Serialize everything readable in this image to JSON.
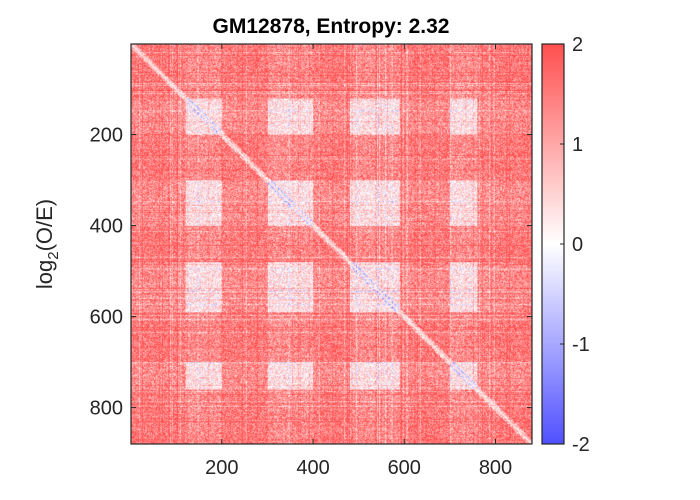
{
  "chart_data": {
    "type": "heatmap",
    "title": "GM12878, Entropy: 2.32",
    "ylabel": "log2(O/E)",
    "ylabel_base": "log",
    "ylabel_sub": "2",
    "ylabel_rest": "(O/E)",
    "xlabel": "",
    "xlim": [
      1,
      880
    ],
    "ylim": [
      1,
      880
    ],
    "y_reversed": true,
    "x_ticks": [
      "200",
      "400",
      "600",
      "800"
    ],
    "y_ticks": [
      "200",
      "400",
      "600",
      "800"
    ],
    "x_tick_values": [
      200,
      400,
      600,
      800
    ],
    "y_tick_values": [
      200,
      400,
      600,
      800
    ],
    "colorbar": {
      "range": [
        -2,
        2
      ],
      "ticks": [
        "2",
        "1",
        "0",
        "-1",
        "-2"
      ],
      "tick_values": [
        2,
        1,
        0,
        -1,
        -2
      ],
      "colors": [
        "#5050ff",
        "#ffffff",
        "#ff4f4f"
      ]
    },
    "matrix_description": "Hi-C observed/expected contact matrix, mostly positive (red) with compartment checkerboard pattern",
    "compartments": [
      {
        "start": 1,
        "end": 120,
        "state": "A"
      },
      {
        "start": 120,
        "end": 200,
        "state": "B"
      },
      {
        "start": 200,
        "end": 300,
        "state": "A"
      },
      {
        "start": 300,
        "end": 400,
        "state": "B"
      },
      {
        "start": 400,
        "end": 480,
        "state": "A"
      },
      {
        "start": 480,
        "end": 590,
        "state": "B"
      },
      {
        "start": 590,
        "end": 700,
        "state": "A"
      },
      {
        "start": 700,
        "end": 760,
        "state": "B"
      },
      {
        "start": 760,
        "end": 880,
        "state": "A"
      }
    ]
  }
}
